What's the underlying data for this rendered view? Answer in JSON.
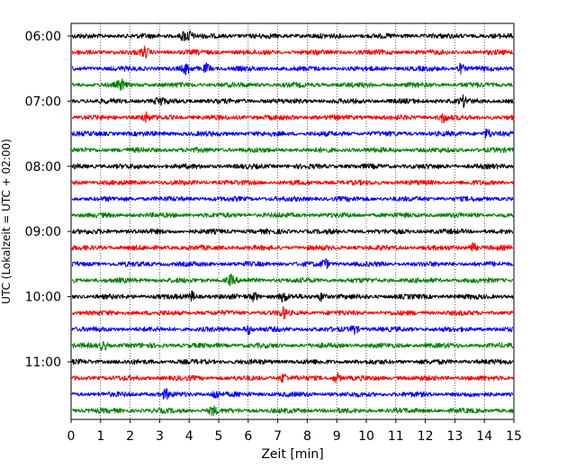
{
  "chart_data": {
    "type": "line",
    "subtype": "helicorder-seismogram",
    "xlabel": "Zeit  [min]",
    "ylabel": "UTC (Lokalzeit = UTC + 02:00)",
    "xlim": [
      0,
      15
    ],
    "x_ticks": [
      0,
      1,
      2,
      3,
      4,
      5,
      6,
      7,
      8,
      9,
      10,
      11,
      12,
      13,
      14,
      15
    ],
    "grid": "vertical dotted at each minute",
    "y_tick_labels": [
      "06:00",
      "07:00",
      "08:00",
      "09:00",
      "10:00",
      "11:00"
    ],
    "row_interval_minutes": 15,
    "start_time": "06:00",
    "trace_colors": [
      "#000000",
      "#ff0000",
      "#0000ff",
      "#008000"
    ],
    "rows": [
      {
        "time": "06:00",
        "color": "#000000",
        "bursts_min": [
          3.8,
          4.0
        ]
      },
      {
        "time": "06:15",
        "color": "#ff0000",
        "bursts_min": [
          2.5
        ]
      },
      {
        "time": "06:30",
        "color": "#0000ff",
        "bursts_min": [
          3.9,
          4.6,
          13.2
        ]
      },
      {
        "time": "06:45",
        "color": "#008000",
        "bursts_min": [
          1.7
        ]
      },
      {
        "time": "07:00",
        "color": "#000000",
        "bursts_min": [
          3.0,
          13.3
        ]
      },
      {
        "time": "07:15",
        "color": "#ff0000",
        "bursts_min": [
          2.5,
          12.6
        ]
      },
      {
        "time": "07:30",
        "color": "#0000ff",
        "bursts_min": [
          14.1
        ]
      },
      {
        "time": "07:45",
        "color": "#008000",
        "bursts_min": []
      },
      {
        "time": "08:00",
        "color": "#000000",
        "bursts_min": []
      },
      {
        "time": "08:15",
        "color": "#ff0000",
        "bursts_min": []
      },
      {
        "time": "08:30",
        "color": "#0000ff",
        "bursts_min": []
      },
      {
        "time": "08:45",
        "color": "#008000",
        "bursts_min": []
      },
      {
        "time": "09:00",
        "color": "#000000",
        "bursts_min": []
      },
      {
        "time": "09:15",
        "color": "#ff0000",
        "bursts_min": [
          13.6
        ]
      },
      {
        "time": "09:30",
        "color": "#0000ff",
        "bursts_min": [
          8.6
        ]
      },
      {
        "time": "09:45",
        "color": "#008000",
        "bursts_min": [
          5.4
        ]
      },
      {
        "time": "10:00",
        "color": "#000000",
        "bursts_min": [
          4.1,
          6.2,
          7.2,
          8.5
        ]
      },
      {
        "time": "10:15",
        "color": "#ff0000",
        "bursts_min": [
          7.2
        ]
      },
      {
        "time": "10:30",
        "color": "#0000ff",
        "bursts_min": [
          6.0,
          9.6
        ]
      },
      {
        "time": "10:45",
        "color": "#008000",
        "bursts_min": [
          1.1
        ]
      },
      {
        "time": "11:00",
        "color": "#000000",
        "bursts_min": []
      },
      {
        "time": "11:15",
        "color": "#ff0000",
        "bursts_min": [
          7.2,
          9.0
        ]
      },
      {
        "time": "11:30",
        "color": "#0000ff",
        "bursts_min": [
          3.2,
          4.9
        ]
      },
      {
        "time": "11:45",
        "color": "#008000",
        "bursts_min": [
          4.8
        ]
      }
    ]
  }
}
